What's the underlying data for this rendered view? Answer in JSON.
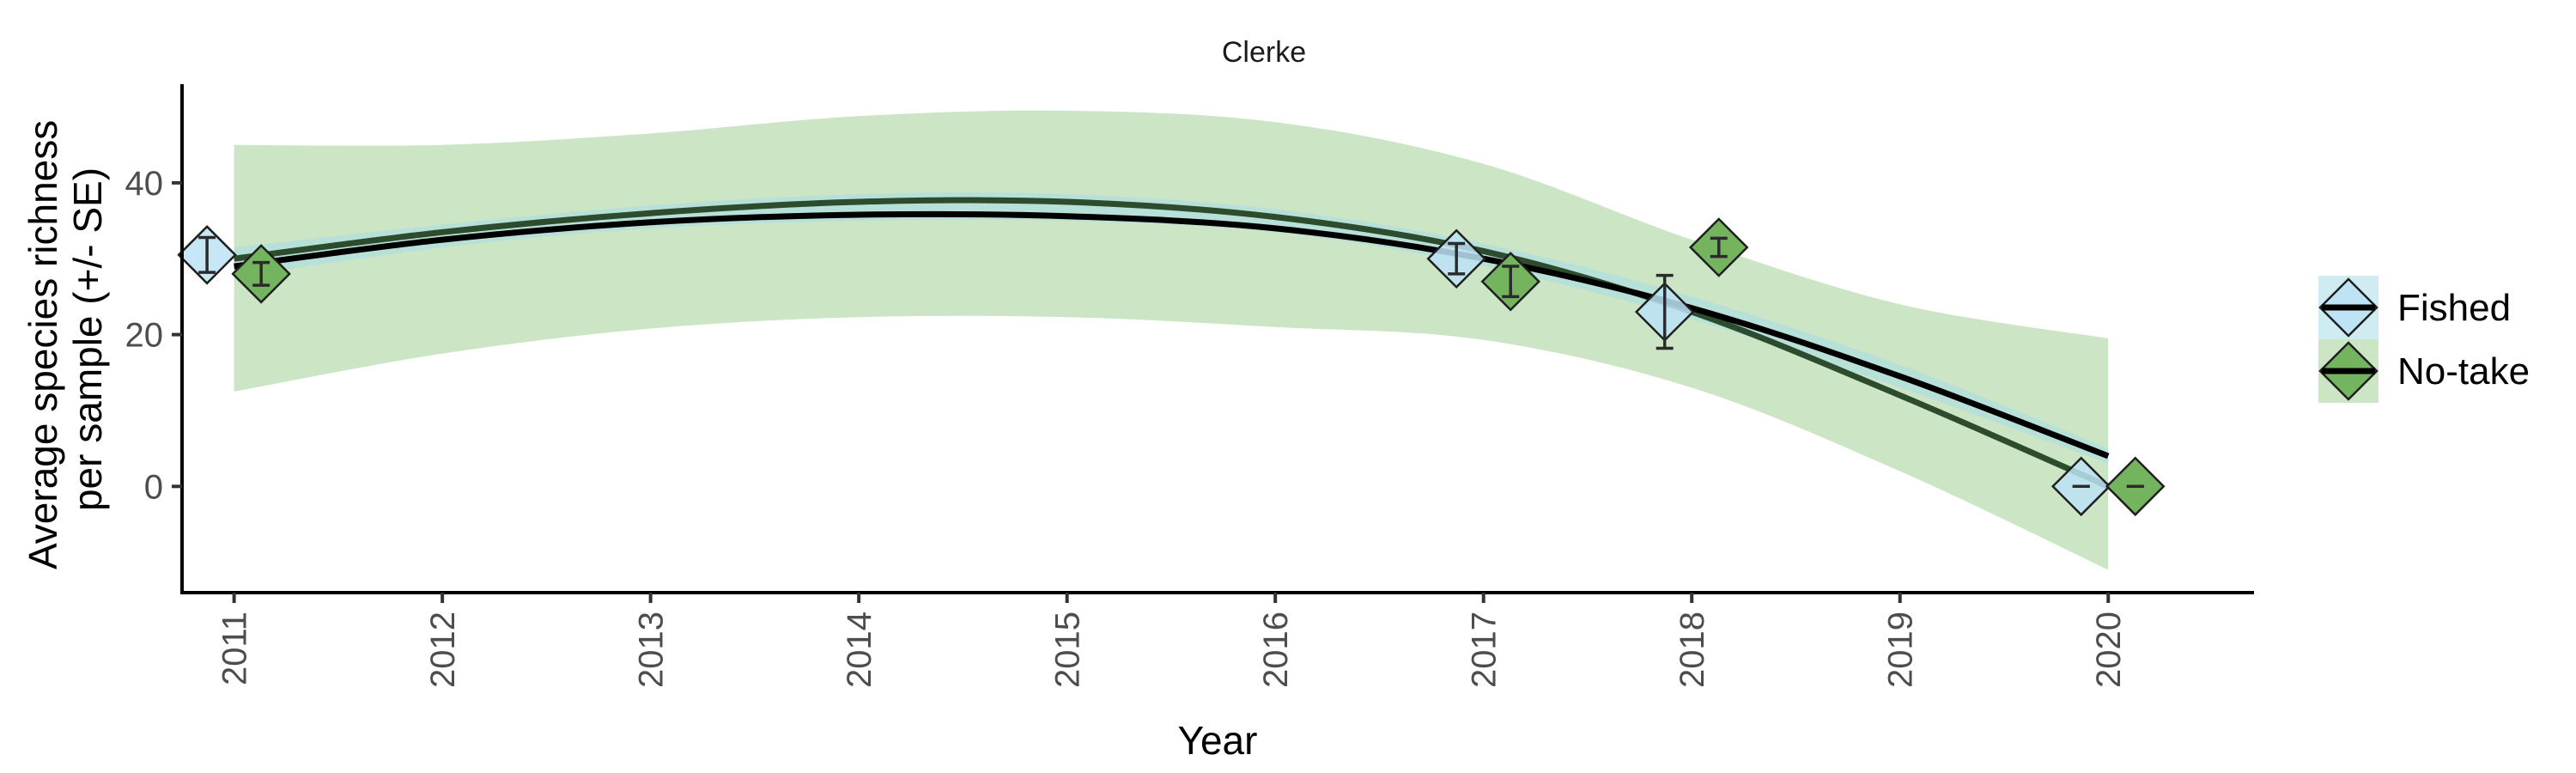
{
  "chart_data": {
    "type": "scatter",
    "title": "Clerke",
    "xlabel": "Year",
    "ylabel_lines": [
      "Average species richness",
      "per sample (+/- SE)"
    ],
    "xlim": [
      2010.75,
      2020.7
    ],
    "ylim": [
      -14,
      53
    ],
    "x_ticks": [
      {
        "value": 2011,
        "label": "2011"
      },
      {
        "value": 2012,
        "label": "2012"
      },
      {
        "value": 2013,
        "label": "2013"
      },
      {
        "value": 2014,
        "label": "2014"
      },
      {
        "value": 2015,
        "label": "2015"
      },
      {
        "value": 2016,
        "label": "2016"
      },
      {
        "value": 2017,
        "label": "2017"
      },
      {
        "value": 2018,
        "label": "2018"
      },
      {
        "value": 2019,
        "label": "2019"
      },
      {
        "value": 2020,
        "label": "2020"
      }
    ],
    "y_ticks": [
      {
        "value": 0,
        "label": "0"
      },
      {
        "value": 20,
        "label": "20"
      },
      {
        "value": 40,
        "label": "40"
      }
    ],
    "grid": false,
    "legend_position": "right",
    "series": [
      {
        "name": "Fished",
        "fill_color": "#bde3f5",
        "band_color": "#a8dcea",
        "band_opacity": 0.55,
        "line_color": "#000000",
        "points": [
          {
            "year": 2011,
            "mean": 30.5,
            "se": 2.3
          },
          {
            "year": 2017,
            "mean": 30.0,
            "se": 2.0
          },
          {
            "year": 2018,
            "mean": 23.0,
            "se": 4.8
          },
          {
            "year": 2020,
            "mean": 0.0,
            "se": 0.0
          }
        ],
        "trend": [
          {
            "x": 2011,
            "y": 29.0
          },
          {
            "x": 2012,
            "y": 32.5
          },
          {
            "x": 2013,
            "y": 34.8
          },
          {
            "x": 2014,
            "y": 35.8
          },
          {
            "x": 2015,
            "y": 35.6
          },
          {
            "x": 2016,
            "y": 34.0
          },
          {
            "x": 2017,
            "y": 30.0
          },
          {
            "x": 2018,
            "y": 23.5
          },
          {
            "x": 2019,
            "y": 14.5
          },
          {
            "x": 2020,
            "y": 4.0
          }
        ],
        "band_lower": [
          {
            "x": 2011,
            "y": 27.5
          },
          {
            "x": 2012,
            "y": 31.5
          },
          {
            "x": 2013,
            "y": 34.0
          },
          {
            "x": 2014,
            "y": 35.0
          },
          {
            "x": 2015,
            "y": 35.0
          },
          {
            "x": 2016,
            "y": 33.5
          },
          {
            "x": 2017,
            "y": 29.0
          },
          {
            "x": 2018,
            "y": 22.0
          },
          {
            "x": 2019,
            "y": 13.0
          },
          {
            "x": 2020,
            "y": 3.0
          }
        ],
        "band_upper": [
          {
            "x": 2011,
            "y": 31.5
          },
          {
            "x": 2012,
            "y": 34.5
          },
          {
            "x": 2013,
            "y": 37.0
          },
          {
            "x": 2014,
            "y": 38.5
          },
          {
            "x": 2015,
            "y": 38.5
          },
          {
            "x": 2016,
            "y": 36.5
          },
          {
            "x": 2017,
            "y": 32.0
          },
          {
            "x": 2018,
            "y": 25.0
          },
          {
            "x": 2019,
            "y": 16.0
          },
          {
            "x": 2020,
            "y": 5.0
          }
        ]
      },
      {
        "name": "No-take",
        "fill_color": "#74b45f",
        "band_color": "#a9d39e",
        "band_opacity": 0.6,
        "line_color": "#2d4b2d",
        "points": [
          {
            "year": 2011,
            "mean": 28.0,
            "se": 1.5
          },
          {
            "year": 2017,
            "mean": 27.0,
            "se": 2.0
          },
          {
            "year": 2018,
            "mean": 31.5,
            "se": 1.2
          },
          {
            "year": 2020,
            "mean": 0.0,
            "se": 0.0
          }
        ],
        "trend": [
          {
            "x": 2011,
            "y": 30.0
          },
          {
            "x": 2012,
            "y": 33.5
          },
          {
            "x": 2013,
            "y": 36.0
          },
          {
            "x": 2014,
            "y": 37.5
          },
          {
            "x": 2015,
            "y": 37.5
          },
          {
            "x": 2016,
            "y": 35.5
          },
          {
            "x": 2017,
            "y": 31.0
          },
          {
            "x": 2018,
            "y": 23.0
          },
          {
            "x": 2019,
            "y": 12.0
          },
          {
            "x": 2020,
            "y": 0.0
          }
        ],
        "band_lower": [
          {
            "x": 2011,
            "y": 12.5
          },
          {
            "x": 2012,
            "y": 17.5
          },
          {
            "x": 2013,
            "y": 20.8
          },
          {
            "x": 2014,
            "y": 22.3
          },
          {
            "x": 2015,
            "y": 22.3
          },
          {
            "x": 2016,
            "y": 21.0
          },
          {
            "x": 2017,
            "y": 19.3
          },
          {
            "x": 2018,
            "y": 13.0
          },
          {
            "x": 2019,
            "y": 2.0
          },
          {
            "x": 2020,
            "y": -11.0
          }
        ],
        "band_upper": [
          {
            "x": 2011,
            "y": 45.0
          },
          {
            "x": 2012,
            "y": 45.0
          },
          {
            "x": 2013,
            "y": 46.5
          },
          {
            "x": 2014,
            "y": 48.8
          },
          {
            "x": 2015,
            "y": 49.5
          },
          {
            "x": 2016,
            "y": 48.0
          },
          {
            "x": 2017,
            "y": 42.5
          },
          {
            "x": 2018,
            "y": 32.5
          },
          {
            "x": 2019,
            "y": 24.0
          },
          {
            "x": 2020,
            "y": 19.5
          }
        ]
      }
    ]
  }
}
